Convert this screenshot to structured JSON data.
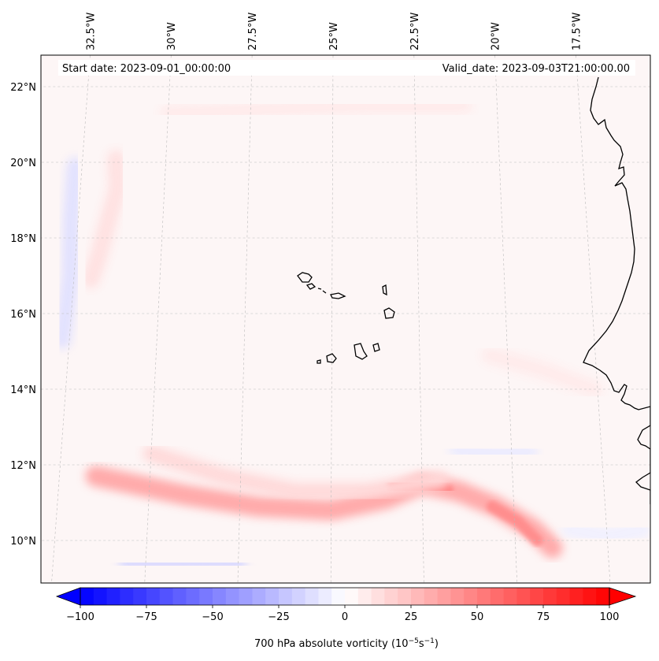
{
  "chart_data": {
    "type": "heatmap",
    "title": "",
    "variable": "700 hPa absolute vorticity",
    "colorbar_label_prefix": "700 hPa absolute vorticity (10",
    "colorbar_label_exp1": "−5",
    "colorbar_label_mid": "s",
    "colorbar_label_exp2": "−1",
    "colorbar_label_suffix": ")",
    "start_date_text": "Start date: 2023-09-01_00:00:00",
    "valid_date_text": "Valid_date: 2023-09-03T21:00:00.00",
    "colorbar": {
      "range": [
        -100,
        100
      ],
      "levels": 40,
      "extend": "both",
      "colormap": "bwr",
      "ticks": [
        {
          "value": -100,
          "label": "−100"
        },
        {
          "value": -75,
          "label": "−75"
        },
        {
          "value": -50,
          "label": "−50"
        },
        {
          "value": -25,
          "label": "−25"
        },
        {
          "value": 0,
          "label": "0"
        },
        {
          "value": 25,
          "label": "25"
        },
        {
          "value": 50,
          "label": "50"
        },
        {
          "value": 75,
          "label": "75"
        },
        {
          "value": 100,
          "label": "100"
        }
      ]
    },
    "lon_range": [
      -33.0,
      -16.0
    ],
    "lat_range": [
      9.0,
      22.8
    ],
    "lon_ticks": [
      {
        "value": -32.5,
        "label": "32.5°W"
      },
      {
        "value": -30.0,
        "label": "30°W"
      },
      {
        "value": -27.5,
        "label": "27.5°W"
      },
      {
        "value": -25.0,
        "label": "25°W"
      },
      {
        "value": -22.5,
        "label": "22.5°W"
      },
      {
        "value": -20.0,
        "label": "20°W"
      },
      {
        "value": -17.5,
        "label": "17.5°W"
      }
    ],
    "lat_ticks": [
      {
        "value": 22,
        "label": "22°N"
      },
      {
        "value": 20,
        "label": "20°N"
      },
      {
        "value": 18,
        "label": "18°N"
      },
      {
        "value": 16,
        "label": "16°N"
      },
      {
        "value": 14,
        "label": "14°N"
      },
      {
        "value": 12,
        "label": "12°N"
      },
      {
        "value": 10,
        "label": "10°N"
      }
    ],
    "features": [
      {
        "name": "vorticity-band-south",
        "kind": "band",
        "value": 35,
        "points": [
          [
            -31.5,
            11.7
          ],
          [
            -29,
            11.2
          ],
          [
            -27,
            10.9
          ],
          [
            -25,
            10.8
          ],
          [
            -23.5,
            11.1
          ],
          [
            -22.5,
            11.5
          ],
          [
            -21.5,
            11.3
          ],
          [
            -20.5,
            10.9
          ],
          [
            -19.5,
            10.3
          ],
          [
            -19.0,
            9.8
          ]
        ]
      },
      {
        "name": "vorticity-band-south-core",
        "kind": "band",
        "value": 50,
        "points": [
          [
            -23.3,
            11.45
          ],
          [
            -22.5,
            11.5
          ],
          [
            -21.8,
            11.35
          ]
        ]
      },
      {
        "name": "vorticity-band-south-core-2",
        "kind": "band",
        "value": 45,
        "points": [
          [
            -20.6,
            10.9
          ],
          [
            -19.9,
            10.5
          ],
          [
            -19.4,
            10.0
          ]
        ]
      },
      {
        "name": "vorticity-band-north",
        "kind": "band",
        "value": 15,
        "points": [
          [
            -30,
            12.3
          ],
          [
            -28,
            11.7
          ],
          [
            -26,
            11.3
          ],
          [
            -24,
            11.3
          ],
          [
            -22,
            11.6
          ]
        ]
      },
      {
        "name": "vorticity-west-ridge",
        "kind": "band",
        "value": 12,
        "points": [
          [
            -31.5,
            20.1
          ],
          [
            -31.4,
            19.3
          ],
          [
            -31.6,
            18.5
          ],
          [
            -31.8,
            17.6
          ],
          [
            -32.0,
            16.9
          ]
        ]
      },
      {
        "name": "vorticity-west-low",
        "kind": "band",
        "value": -12,
        "points": [
          [
            -32.7,
            19.9
          ],
          [
            -32.7,
            18.5
          ],
          [
            -32.6,
            17.0
          ],
          [
            -32.7,
            15.3
          ]
        ]
      },
      {
        "name": "vorticity-south-low",
        "kind": "band",
        "value": -15,
        "points": [
          [
            -30.5,
            9.4
          ],
          [
            -29,
            9.4
          ],
          [
            -27.5,
            9.35
          ]
        ]
      },
      {
        "name": "vorticity-south-low-east",
        "kind": "band",
        "value": -18,
        "points": [
          [
            -19.6,
            9.45
          ],
          [
            -19.2,
            9.45
          ]
        ]
      },
      {
        "name": "vorticity-east-low",
        "kind": "band",
        "value": -8,
        "points": [
          [
            -21.5,
            12.4
          ],
          [
            -20.5,
            12.3
          ],
          [
            -19.5,
            12.35
          ]
        ]
      },
      {
        "name": "vorticity-east-low-2",
        "kind": "band",
        "value": -6,
        "points": [
          [
            -18.5,
            10.3
          ],
          [
            -17.5,
            10.1
          ],
          [
            -16.5,
            10.3
          ]
        ]
      },
      {
        "name": "vorticity-north-patch",
        "kind": "band",
        "value": 8,
        "points": [
          [
            -30,
            21.3
          ],
          [
            -27,
            21.4
          ],
          [
            -24,
            21.5
          ],
          [
            -21,
            21.5
          ]
        ]
      },
      {
        "name": "vorticity-east-patch",
        "kind": "band",
        "value": 8,
        "points": [
          [
            -20.5,
            14.9
          ],
          [
            -19,
            14.5
          ],
          [
            -17.6,
            14.0
          ]
        ]
      }
    ]
  }
}
